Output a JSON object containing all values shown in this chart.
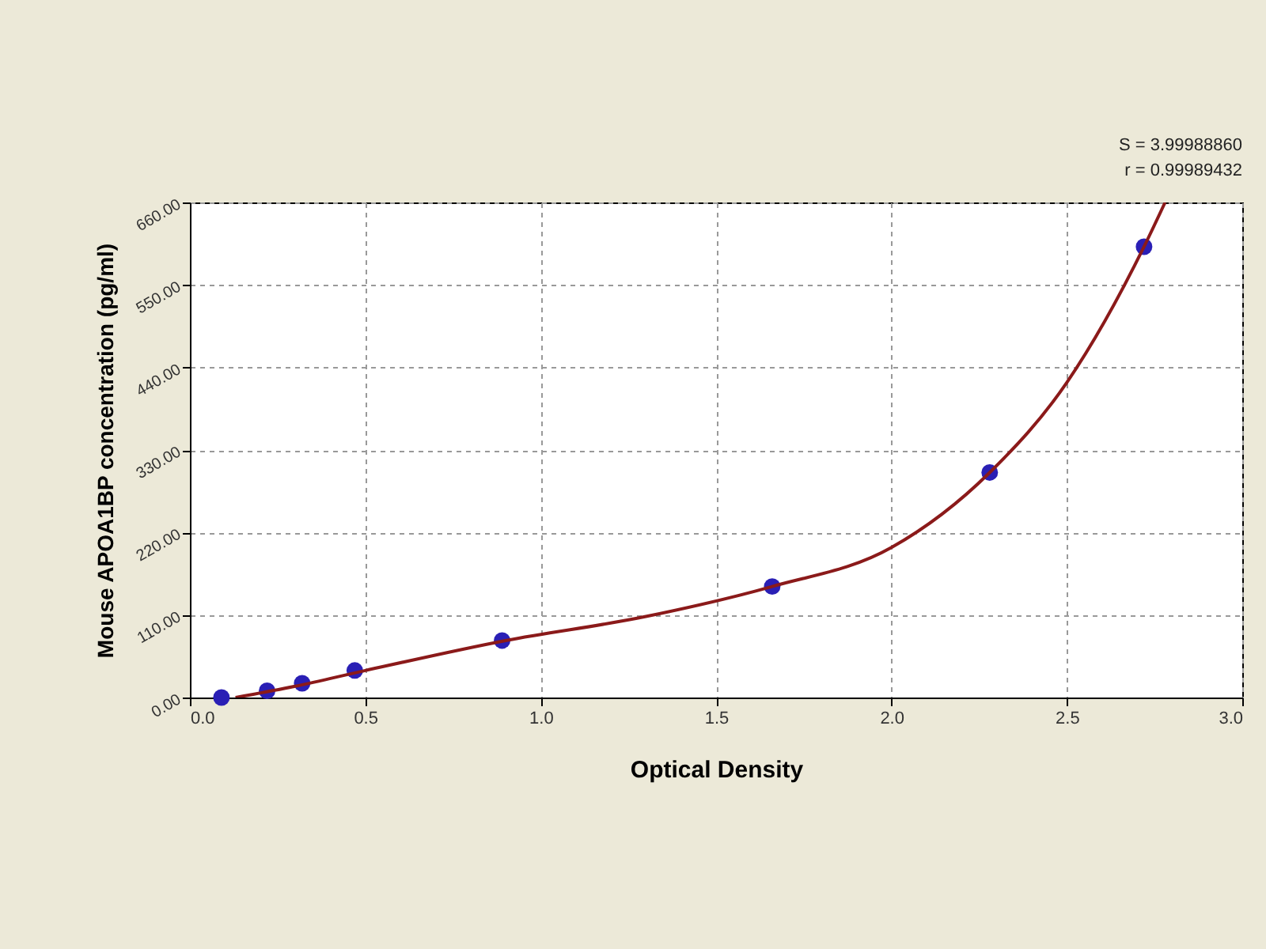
{
  "chart_data": {
    "type": "scatter",
    "xlabel": "Optical Density",
    "ylabel": "Mouse APOA1BP concentration (pg/ml)",
    "annotations": [
      "S = 3.99988860",
      "r = 0.99989432"
    ],
    "series": [
      {
        "marker": "circle",
        "color": "#2a1fb5",
        "x": [
          0.09,
          0.22,
          0.32,
          0.47,
          0.89,
          1.66,
          2.28,
          2.72
        ],
        "values": [
          0,
          9,
          19,
          36,
          76,
          148,
          300,
          601
        ]
      },
      {
        "type": "line",
        "marker": "none",
        "color": "#8b1a1a",
        "x": [
          0.13,
          0.3,
          0.5,
          0.9,
          1.3,
          1.66,
          2.0,
          2.28,
          2.5,
          2.72,
          2.78
        ],
        "values": [
          0,
          15,
          36,
          76,
          108,
          148,
          200,
          300,
          420,
          601,
          660
        ]
      }
    ],
    "xlim": [
      0,
      3.0
    ],
    "xticks": [
      {
        "value": 0,
        "label": "0.0"
      },
      0.5,
      {
        "value": 1,
        "label": "1.0"
      },
      1.5,
      {
        "value": 2,
        "label": "2.0"
      },
      2.5,
      {
        "value": 3,
        "label": "3.0"
      }
    ],
    "ylim": [
      0,
      660
    ],
    "yticks": [
      {
        "value": 0,
        "label": "0.00"
      },
      {
        "value": 110,
        "label": "110.00"
      },
      {
        "value": 220,
        "label": "220.00"
      },
      {
        "value": 330,
        "label": "330.00"
      },
      {
        "value": 440,
        "label": "440.00"
      },
      {
        "value": 550,
        "label": "550.00"
      },
      {
        "value": 660,
        "label": "660.00"
      }
    ],
    "grid": true,
    "line_style": "solid"
  }
}
